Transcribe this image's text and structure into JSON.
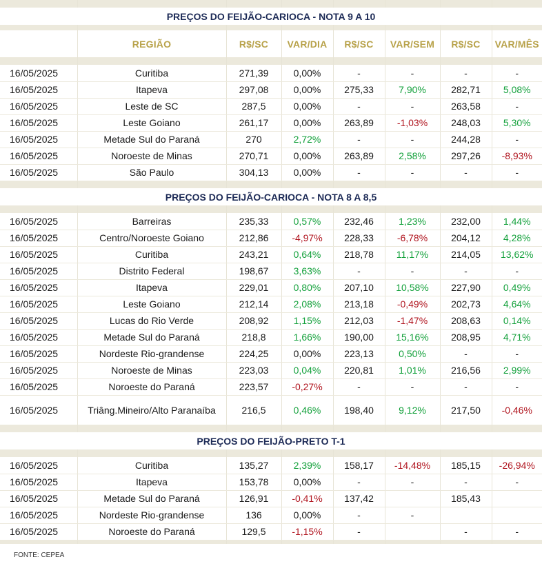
{
  "headers": {
    "regiao": "REGIÃO",
    "rs_sc": "R$/SC",
    "var_dia": "VAR/DIA",
    "rs_sc_sem": "R$/SC",
    "var_sem": "VAR/SEM",
    "rs_sc_mes": "R$/SC",
    "var_mes": "VAR/MÊS"
  },
  "sections": [
    {
      "title": "PREÇOS DO FEIJÃO-CARIOCA - NOTA 9 A 10",
      "show_header": true,
      "rows": [
        {
          "date": "16/05/2025",
          "region": "Curitiba",
          "price": "271,39",
          "var_dia": "0,00%",
          "price_sem": "-",
          "var_sem": "-",
          "price_mes": "-",
          "var_mes": "-"
        },
        {
          "date": "16/05/2025",
          "region": "Itapeva",
          "price": "297,08",
          "var_dia": "0,00%",
          "price_sem": "275,33",
          "var_sem": "7,90%",
          "price_mes": "282,71",
          "var_mes": "5,08%"
        },
        {
          "date": "16/05/2025",
          "region": "Leste de SC",
          "price": "287,5",
          "var_dia": "0,00%",
          "price_sem": "-",
          "var_sem": "-",
          "price_mes": "263,58",
          "var_mes": "-"
        },
        {
          "date": "16/05/2025",
          "region": "Leste Goiano",
          "price": "261,17",
          "var_dia": "0,00%",
          "price_sem": "263,89",
          "var_sem": "-1,03%",
          "price_mes": "248,03",
          "var_mes": "5,30%"
        },
        {
          "date": "16/05/2025",
          "region": "Metade Sul do Paraná",
          "price": "270",
          "var_dia": "2,72%",
          "price_sem": "-",
          "var_sem": "-",
          "price_mes": "244,28",
          "var_mes": "-"
        },
        {
          "date": "16/05/2025",
          "region": "Noroeste de Minas",
          "price": "270,71",
          "var_dia": "0,00%",
          "price_sem": "263,89",
          "var_sem": "2,58%",
          "price_mes": "297,26",
          "var_mes": "-8,93%"
        },
        {
          "date": "16/05/2025",
          "region": "São Paulo",
          "price": "304,13",
          "var_dia": "0,00%",
          "price_sem": "-",
          "var_sem": "-",
          "price_mes": "-",
          "var_mes": "-"
        }
      ]
    },
    {
      "title": "PREÇOS DO FEIJÃO-CARIOCA - NOTA 8 A 8,5",
      "show_header": false,
      "rows": [
        {
          "date": "16/05/2025",
          "region": "Barreiras",
          "price": "235,33",
          "var_dia": "0,57%",
          "price_sem": "232,46",
          "var_sem": "1,23%",
          "price_mes": "232,00",
          "var_mes": "1,44%"
        },
        {
          "date": "16/05/2025",
          "region": "Centro/Noroeste Goiano",
          "price": "212,86",
          "var_dia": "-4,97%",
          "price_sem": "228,33",
          "var_sem": "-6,78%",
          "price_mes": "204,12",
          "var_mes": "4,28%"
        },
        {
          "date": "16/05/2025",
          "region": "Curitiba",
          "price": "243,21",
          "var_dia": "0,64%",
          "price_sem": "218,78",
          "var_sem": "11,17%",
          "price_mes": "214,05",
          "var_mes": "13,62%"
        },
        {
          "date": "16/05/2025",
          "region": "Distrito Federal",
          "price": "198,67",
          "var_dia": "3,63%",
          "price_sem": "-",
          "var_sem": "-",
          "price_mes": "-",
          "var_mes": "-"
        },
        {
          "date": "16/05/2025",
          "region": "Itapeva",
          "price": "229,01",
          "var_dia": "0,80%",
          "price_sem": "207,10",
          "var_sem": "10,58%",
          "price_mes": "227,90",
          "var_mes": "0,49%"
        },
        {
          "date": "16/05/2025",
          "region": "Leste Goiano",
          "price": "212,14",
          "var_dia": "2,08%",
          "price_sem": "213,18",
          "var_sem": "-0,49%",
          "price_mes": "202,73",
          "var_mes": "4,64%"
        },
        {
          "date": "16/05/2025",
          "region": "Lucas do Rio Verde",
          "price": "208,92",
          "var_dia": "1,15%",
          "price_sem": "212,03",
          "var_sem": "-1,47%",
          "price_mes": "208,63",
          "var_mes": "0,14%"
        },
        {
          "date": "16/05/2025",
          "region": "Metade Sul do Paraná",
          "price": "218,8",
          "var_dia": "1,66%",
          "price_sem": "190,00",
          "var_sem": "15,16%",
          "price_mes": "208,95",
          "var_mes": "4,71%"
        },
        {
          "date": "16/05/2025",
          "region": "Nordeste Rio-grandense",
          "price": "224,25",
          "var_dia": "0,00%",
          "price_sem": "223,13",
          "var_sem": "0,50%",
          "price_mes": "-",
          "var_mes": "-"
        },
        {
          "date": "16/05/2025",
          "region": "Noroeste de Minas",
          "price": "223,03",
          "var_dia": "0,04%",
          "price_sem": "220,81",
          "var_sem": "1,01%",
          "price_mes": "216,56",
          "var_mes": "2,99%"
        },
        {
          "date": "16/05/2025",
          "region": "Noroeste do Paraná",
          "price": "223,57",
          "var_dia": "-0,27%",
          "price_sem": "-",
          "var_sem": "-",
          "price_mes": "-",
          "var_mes": "-"
        },
        {
          "date": "16/05/2025",
          "region": "Triâng.Mineiro/Alto Paranaíba",
          "price": "216,5",
          "var_dia": "0,46%",
          "price_sem": "198,40",
          "var_sem": "9,12%",
          "price_mes": "217,50",
          "var_mes": "-0,46%",
          "tall": true
        }
      ]
    },
    {
      "title": "PREÇOS DO  FEIJÃO-PRETO  T-1",
      "show_header": false,
      "rows": [
        {
          "date": "16/05/2025",
          "region": "Curitiba",
          "price": "135,27",
          "var_dia": "2,39%",
          "price_sem": "158,17",
          "var_sem": "-14,48%",
          "price_mes": "185,15",
          "var_mes": "-26,94%"
        },
        {
          "date": "16/05/2025",
          "region": "Itapeva",
          "price": "153,78",
          "var_dia": "0,00%",
          "price_sem": "-",
          "var_sem": "-",
          "price_mes": "-",
          "var_mes": "-"
        },
        {
          "date": "16/05/2025",
          "region": "Metade Sul do Paraná",
          "price": "126,91",
          "var_dia": "-0,41%",
          "price_sem": "137,42",
          "var_sem": "",
          "price_mes": "185,43",
          "var_mes": ""
        },
        {
          "date": "16/05/2025",
          "region": "Nordeste Rio-grandense",
          "price": "136",
          "var_dia": "0,00%",
          "price_sem": "-",
          "var_sem": "-",
          "price_mes": "",
          "var_mes": ""
        },
        {
          "date": "16/05/2025",
          "region": "Noroeste do Paraná",
          "price": "129,5",
          "var_dia": "-1,15%",
          "price_sem": "-",
          "var_sem": "",
          "price_mes": "-",
          "var_mes": "-"
        }
      ]
    }
  ],
  "source": "FONTE: CEPEA",
  "colors": {
    "title": "#1c2a56",
    "header": "#b8a24a",
    "positive": "#12a03a",
    "negative": "#b0141e",
    "band": "#ece9dc"
  }
}
